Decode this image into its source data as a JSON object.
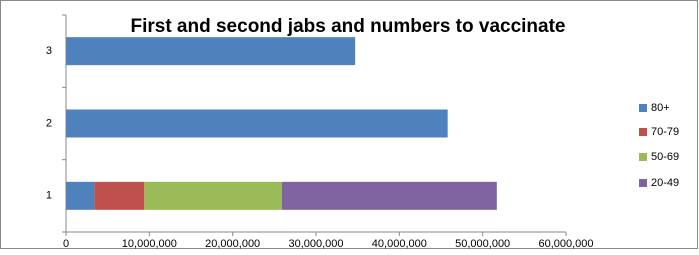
{
  "chart_data": {
    "type": "stacked-bar-horizontal",
    "title": "First and second jabs and numbers to vaccinate",
    "categories": [
      "1",
      "2",
      "3"
    ],
    "series": [
      {
        "name": "80+",
        "color": "#4f81bd",
        "values": [
          3400000,
          45800000,
          34700000
        ]
      },
      {
        "name": "70-79",
        "color": "#c0504d",
        "values": [
          6000000,
          null,
          null
        ]
      },
      {
        "name": "50-69",
        "color": "#9bbb59",
        "values": [
          16500000,
          null,
          null
        ]
      },
      {
        "name": "20-49",
        "color": "#8064a2",
        "values": [
          25800000,
          null,
          null
        ]
      }
    ],
    "xlim": [
      0,
      60000000
    ],
    "xticks": [
      0,
      {
        "value": 10000000,
        "label": "10,000,000"
      },
      {
        "value": 20000000,
        "label": "20,000,000"
      },
      {
        "value": 30000000,
        "label": "30,000,000"
      },
      {
        "value": 40000000,
        "label": "40,000,000"
      },
      {
        "value": 50000000,
        "label": "50,000,000"
      },
      {
        "value": 60000000,
        "label": "60,000,000"
      }
    ],
    "grid": false,
    "legend": "right"
  }
}
